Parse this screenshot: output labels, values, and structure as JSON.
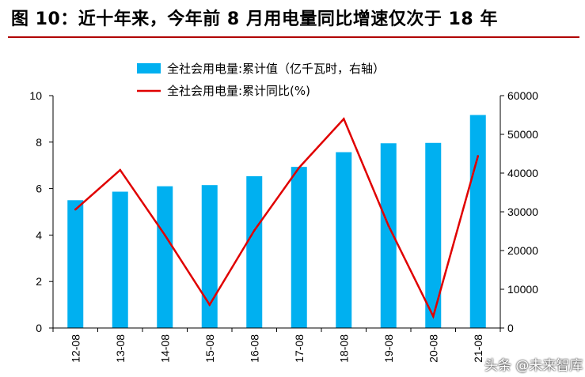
{
  "header": {
    "title": "图 10：近十年来，今年前 8 月用电量同比增速仅次于 18 年"
  },
  "watermark": "头条 @未来智库",
  "chart_data": {
    "type": "bar",
    "categories": [
      "12-08",
      "13-08",
      "14-08",
      "15-08",
      "16-08",
      "17-08",
      "18-08",
      "19-08",
      "20-08",
      "21-08"
    ],
    "series": [
      {
        "name": "全社会用电量:累计值（亿千瓦时，右轴）",
        "type": "bar",
        "axis": "right",
        "color": "#00b0f0",
        "values": [
          33000,
          35200,
          36600,
          36900,
          39200,
          41600,
          45400,
          47700,
          47800,
          55000
        ]
      },
      {
        "name": "全社会用电量:累计同比(%)",
        "type": "line",
        "axis": "left",
        "color": "#e00000",
        "values": [
          5.1,
          6.8,
          4.0,
          1.0,
          4.2,
          6.9,
          9.0,
          4.4,
          0.5,
          7.4
        ]
      }
    ],
    "y_left": {
      "min": 0,
      "max": 10,
      "ticks": [
        "0",
        "2",
        "4",
        "6",
        "8",
        "10"
      ]
    },
    "y_right": {
      "min": 0,
      "max": 60000,
      "ticks": [
        "0",
        "10000",
        "20000",
        "30000",
        "40000",
        "50000",
        "60000"
      ]
    },
    "grid": false,
    "legend": "top-center"
  }
}
